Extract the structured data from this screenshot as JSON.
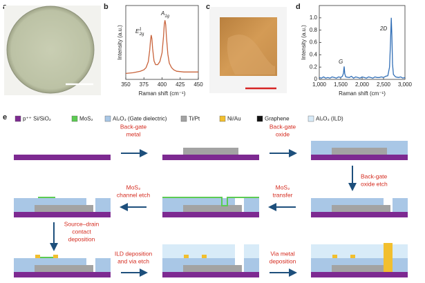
{
  "panel_labels": [
    "a",
    "b",
    "c",
    "d",
    "e"
  ],
  "chart_data": [
    {
      "type": "line",
      "x_label": "Raman shift (cm⁻¹)",
      "y_label": "Intensity (a.u.)",
      "xlim": [
        350,
        450
      ],
      "ylim": [
        0,
        1
      ],
      "xticks": [
        350,
        375,
        400,
        425,
        450
      ],
      "x": [
        350,
        360,
        370,
        375,
        378,
        381,
        383,
        384,
        385,
        386,
        387,
        389,
        391,
        394,
        397,
        400,
        402,
        403,
        404,
        405,
        406,
        408,
        410,
        413,
        416,
        420,
        430,
        440,
        450
      ],
      "series": [
        {
          "color": "#c8623a",
          "values": [
            0.08,
            0.09,
            0.11,
            0.13,
            0.16,
            0.24,
            0.4,
            0.52,
            0.6,
            0.55,
            0.42,
            0.25,
            0.2,
            0.2,
            0.24,
            0.36,
            0.58,
            0.74,
            0.8,
            0.74,
            0.58,
            0.34,
            0.22,
            0.16,
            0.13,
            0.11,
            0.1,
            0.1,
            0.1
          ]
        }
      ],
      "annotations": [
        {
          "text": "E",
          "sub": "2g",
          "sup": "1"
        },
        {
          "text": "A",
          "sub": "1g"
        }
      ]
    },
    {
      "type": "line",
      "x_label": "Raman shift (cm⁻¹)",
      "y_label": "Intensity (a.u.)",
      "xlim": [
        1000,
        3000
      ],
      "ylim": [
        0,
        1.2
      ],
      "xticks": [
        {
          "value": 1000,
          "label": "1,000"
        },
        {
          "value": 1500,
          "label": "1,500"
        },
        {
          "value": 2000,
          "label": "2,000"
        },
        {
          "value": 2500,
          "label": "2,500"
        },
        {
          "value": 3000,
          "label": "3,000"
        }
      ],
      "yticks": [
        0,
        0.2,
        0.4,
        0.6,
        0.8,
        {
          "value": 1,
          "label": "1.0"
        }
      ],
      "x": [
        1000,
        1050,
        1100,
        1150,
        1200,
        1250,
        1300,
        1350,
        1400,
        1450,
        1500,
        1540,
        1565,
        1580,
        1595,
        1620,
        1700,
        1750,
        1800,
        1850,
        1900,
        1950,
        2000,
        2050,
        2100,
        2150,
        2200,
        2250,
        2300,
        2350,
        2400,
        2450,
        2500,
        2550,
        2600,
        2640,
        2660,
        2680,
        2695,
        2710,
        2730,
        2780,
        2850,
        2900,
        2950,
        3000
      ],
      "series": [
        {
          "color": "#2f6db5",
          "values": [
            0.03,
            0.02,
            0.04,
            0.02,
            0.03,
            0.02,
            0.04,
            0.03,
            0.02,
            0.04,
            0.03,
            0.05,
            0.1,
            0.21,
            0.09,
            0.04,
            0.03,
            0.05,
            0.02,
            0.04,
            0.03,
            0.02,
            0.04,
            0.03,
            0.02,
            0.04,
            0.03,
            0.02,
            0.04,
            0.03,
            0.03,
            0.04,
            0.03,
            0.05,
            0.06,
            0.2,
            0.55,
            1.0,
            0.7,
            0.25,
            0.08,
            0.04,
            0.03,
            0.04,
            0.02,
            0.03
          ]
        }
      ],
      "annotations": [
        {
          "text": "G"
        },
        {
          "text": "2D"
        }
      ]
    }
  ],
  "legend": [
    {
      "label": "p⁺⁺ Si/SiO₂",
      "color": "#7d2a91"
    },
    {
      "label": "MoS₂",
      "color": "#5ccb52"
    },
    {
      "label": "Al₂O₃ (Gate dielectric)",
      "color": "#a9c7e6"
    },
    {
      "label": "Ti/Pt",
      "color": "#a3a3a3"
    },
    {
      "label": "Ni/Au",
      "color": "#f2bf2e"
    },
    {
      "label": "Graphene",
      "color": "#111111"
    },
    {
      "label": "Al₂O₃ (ILD)",
      "color": "#d8ebf8"
    }
  ],
  "steps": [
    {
      "lines": [
        "Back-gate",
        "metal"
      ]
    },
    {
      "lines": [
        "Back-gate",
        "oxide"
      ]
    },
    {
      "lines": [
        "Back-gate",
        "oxide etch"
      ]
    },
    {
      "lines": [
        "MoS₂",
        "transfer"
      ]
    },
    {
      "lines": [
        "MoS₂",
        "channel etch"
      ]
    },
    {
      "lines": [
        "Source–drain",
        "contact",
        "deposition"
      ]
    },
    {
      "lines": [
        "ILD deposition",
        "and via etch"
      ]
    },
    {
      "lines": [
        "Via metal",
        "deposition"
      ]
    }
  ]
}
